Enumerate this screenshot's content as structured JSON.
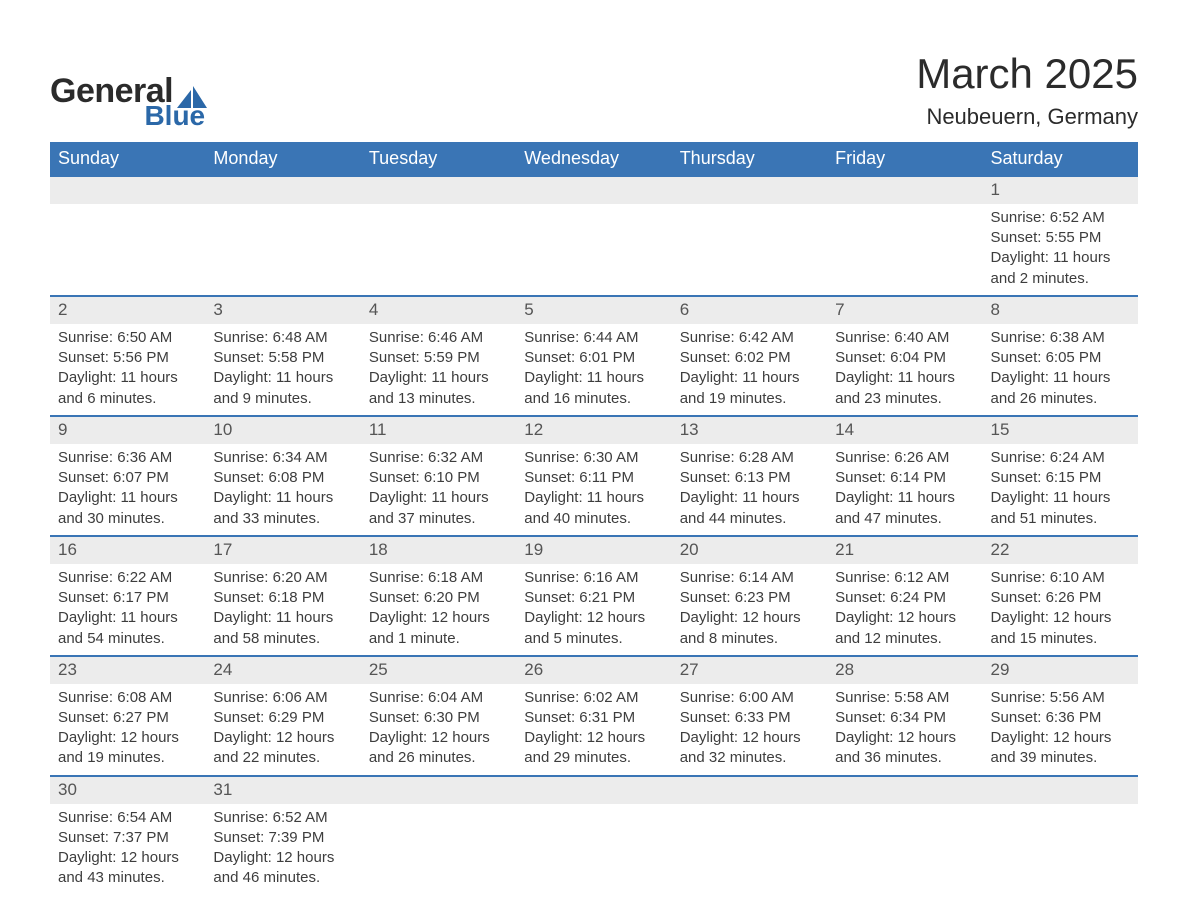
{
  "brand": {
    "word1": "General",
    "word2": "Blue",
    "accent_color": "#2b68a8"
  },
  "header": {
    "month_title": "March 2025",
    "location": "Neubeuern, Germany"
  },
  "colors": {
    "header_bg": "#3a75b5",
    "header_text": "#ffffff",
    "daynum_bg": "#ececec",
    "daynum_border": "#3a75b5",
    "body_text": "#3d3d3d",
    "page_bg": "#ffffff"
  },
  "weekdays": [
    "Sunday",
    "Monday",
    "Tuesday",
    "Wednesday",
    "Thursday",
    "Friday",
    "Saturday"
  ],
  "weeks": [
    {
      "days": [
        null,
        null,
        null,
        null,
        null,
        null,
        {
          "n": "1",
          "sunrise": "Sunrise: 6:52 AM",
          "sunset": "Sunset: 5:55 PM",
          "daylight": "Daylight: 11 hours and 2 minutes."
        }
      ]
    },
    {
      "days": [
        {
          "n": "2",
          "sunrise": "Sunrise: 6:50 AM",
          "sunset": "Sunset: 5:56 PM",
          "daylight": "Daylight: 11 hours and 6 minutes."
        },
        {
          "n": "3",
          "sunrise": "Sunrise: 6:48 AM",
          "sunset": "Sunset: 5:58 PM",
          "daylight": "Daylight: 11 hours and 9 minutes."
        },
        {
          "n": "4",
          "sunrise": "Sunrise: 6:46 AM",
          "sunset": "Sunset: 5:59 PM",
          "daylight": "Daylight: 11 hours and 13 minutes."
        },
        {
          "n": "5",
          "sunrise": "Sunrise: 6:44 AM",
          "sunset": "Sunset: 6:01 PM",
          "daylight": "Daylight: 11 hours and 16 minutes."
        },
        {
          "n": "6",
          "sunrise": "Sunrise: 6:42 AM",
          "sunset": "Sunset: 6:02 PM",
          "daylight": "Daylight: 11 hours and 19 minutes."
        },
        {
          "n": "7",
          "sunrise": "Sunrise: 6:40 AM",
          "sunset": "Sunset: 6:04 PM",
          "daylight": "Daylight: 11 hours and 23 minutes."
        },
        {
          "n": "8",
          "sunrise": "Sunrise: 6:38 AM",
          "sunset": "Sunset: 6:05 PM",
          "daylight": "Daylight: 11 hours and 26 minutes."
        }
      ]
    },
    {
      "days": [
        {
          "n": "9",
          "sunrise": "Sunrise: 6:36 AM",
          "sunset": "Sunset: 6:07 PM",
          "daylight": "Daylight: 11 hours and 30 minutes."
        },
        {
          "n": "10",
          "sunrise": "Sunrise: 6:34 AM",
          "sunset": "Sunset: 6:08 PM",
          "daylight": "Daylight: 11 hours and 33 minutes."
        },
        {
          "n": "11",
          "sunrise": "Sunrise: 6:32 AM",
          "sunset": "Sunset: 6:10 PM",
          "daylight": "Daylight: 11 hours and 37 minutes."
        },
        {
          "n": "12",
          "sunrise": "Sunrise: 6:30 AM",
          "sunset": "Sunset: 6:11 PM",
          "daylight": "Daylight: 11 hours and 40 minutes."
        },
        {
          "n": "13",
          "sunrise": "Sunrise: 6:28 AM",
          "sunset": "Sunset: 6:13 PM",
          "daylight": "Daylight: 11 hours and 44 minutes."
        },
        {
          "n": "14",
          "sunrise": "Sunrise: 6:26 AM",
          "sunset": "Sunset: 6:14 PM",
          "daylight": "Daylight: 11 hours and 47 minutes."
        },
        {
          "n": "15",
          "sunrise": "Sunrise: 6:24 AM",
          "sunset": "Sunset: 6:15 PM",
          "daylight": "Daylight: 11 hours and 51 minutes."
        }
      ]
    },
    {
      "days": [
        {
          "n": "16",
          "sunrise": "Sunrise: 6:22 AM",
          "sunset": "Sunset: 6:17 PM",
          "daylight": "Daylight: 11 hours and 54 minutes."
        },
        {
          "n": "17",
          "sunrise": "Sunrise: 6:20 AM",
          "sunset": "Sunset: 6:18 PM",
          "daylight": "Daylight: 11 hours and 58 minutes."
        },
        {
          "n": "18",
          "sunrise": "Sunrise: 6:18 AM",
          "sunset": "Sunset: 6:20 PM",
          "daylight": "Daylight: 12 hours and 1 minute."
        },
        {
          "n": "19",
          "sunrise": "Sunrise: 6:16 AM",
          "sunset": "Sunset: 6:21 PM",
          "daylight": "Daylight: 12 hours and 5 minutes."
        },
        {
          "n": "20",
          "sunrise": "Sunrise: 6:14 AM",
          "sunset": "Sunset: 6:23 PM",
          "daylight": "Daylight: 12 hours and 8 minutes."
        },
        {
          "n": "21",
          "sunrise": "Sunrise: 6:12 AM",
          "sunset": "Sunset: 6:24 PM",
          "daylight": "Daylight: 12 hours and 12 minutes."
        },
        {
          "n": "22",
          "sunrise": "Sunrise: 6:10 AM",
          "sunset": "Sunset: 6:26 PM",
          "daylight": "Daylight: 12 hours and 15 minutes."
        }
      ]
    },
    {
      "days": [
        {
          "n": "23",
          "sunrise": "Sunrise: 6:08 AM",
          "sunset": "Sunset: 6:27 PM",
          "daylight": "Daylight: 12 hours and 19 minutes."
        },
        {
          "n": "24",
          "sunrise": "Sunrise: 6:06 AM",
          "sunset": "Sunset: 6:29 PM",
          "daylight": "Daylight: 12 hours and 22 minutes."
        },
        {
          "n": "25",
          "sunrise": "Sunrise: 6:04 AM",
          "sunset": "Sunset: 6:30 PM",
          "daylight": "Daylight: 12 hours and 26 minutes."
        },
        {
          "n": "26",
          "sunrise": "Sunrise: 6:02 AM",
          "sunset": "Sunset: 6:31 PM",
          "daylight": "Daylight: 12 hours and 29 minutes."
        },
        {
          "n": "27",
          "sunrise": "Sunrise: 6:00 AM",
          "sunset": "Sunset: 6:33 PM",
          "daylight": "Daylight: 12 hours and 32 minutes."
        },
        {
          "n": "28",
          "sunrise": "Sunrise: 5:58 AM",
          "sunset": "Sunset: 6:34 PM",
          "daylight": "Daylight: 12 hours and 36 minutes."
        },
        {
          "n": "29",
          "sunrise": "Sunrise: 5:56 AM",
          "sunset": "Sunset: 6:36 PM",
          "daylight": "Daylight: 12 hours and 39 minutes."
        }
      ]
    },
    {
      "days": [
        {
          "n": "30",
          "sunrise": "Sunrise: 6:54 AM",
          "sunset": "Sunset: 7:37 PM",
          "daylight": "Daylight: 12 hours and 43 minutes."
        },
        {
          "n": "31",
          "sunrise": "Sunrise: 6:52 AM",
          "sunset": "Sunset: 7:39 PM",
          "daylight": "Daylight: 12 hours and 46 minutes."
        },
        null,
        null,
        null,
        null,
        null
      ]
    }
  ]
}
